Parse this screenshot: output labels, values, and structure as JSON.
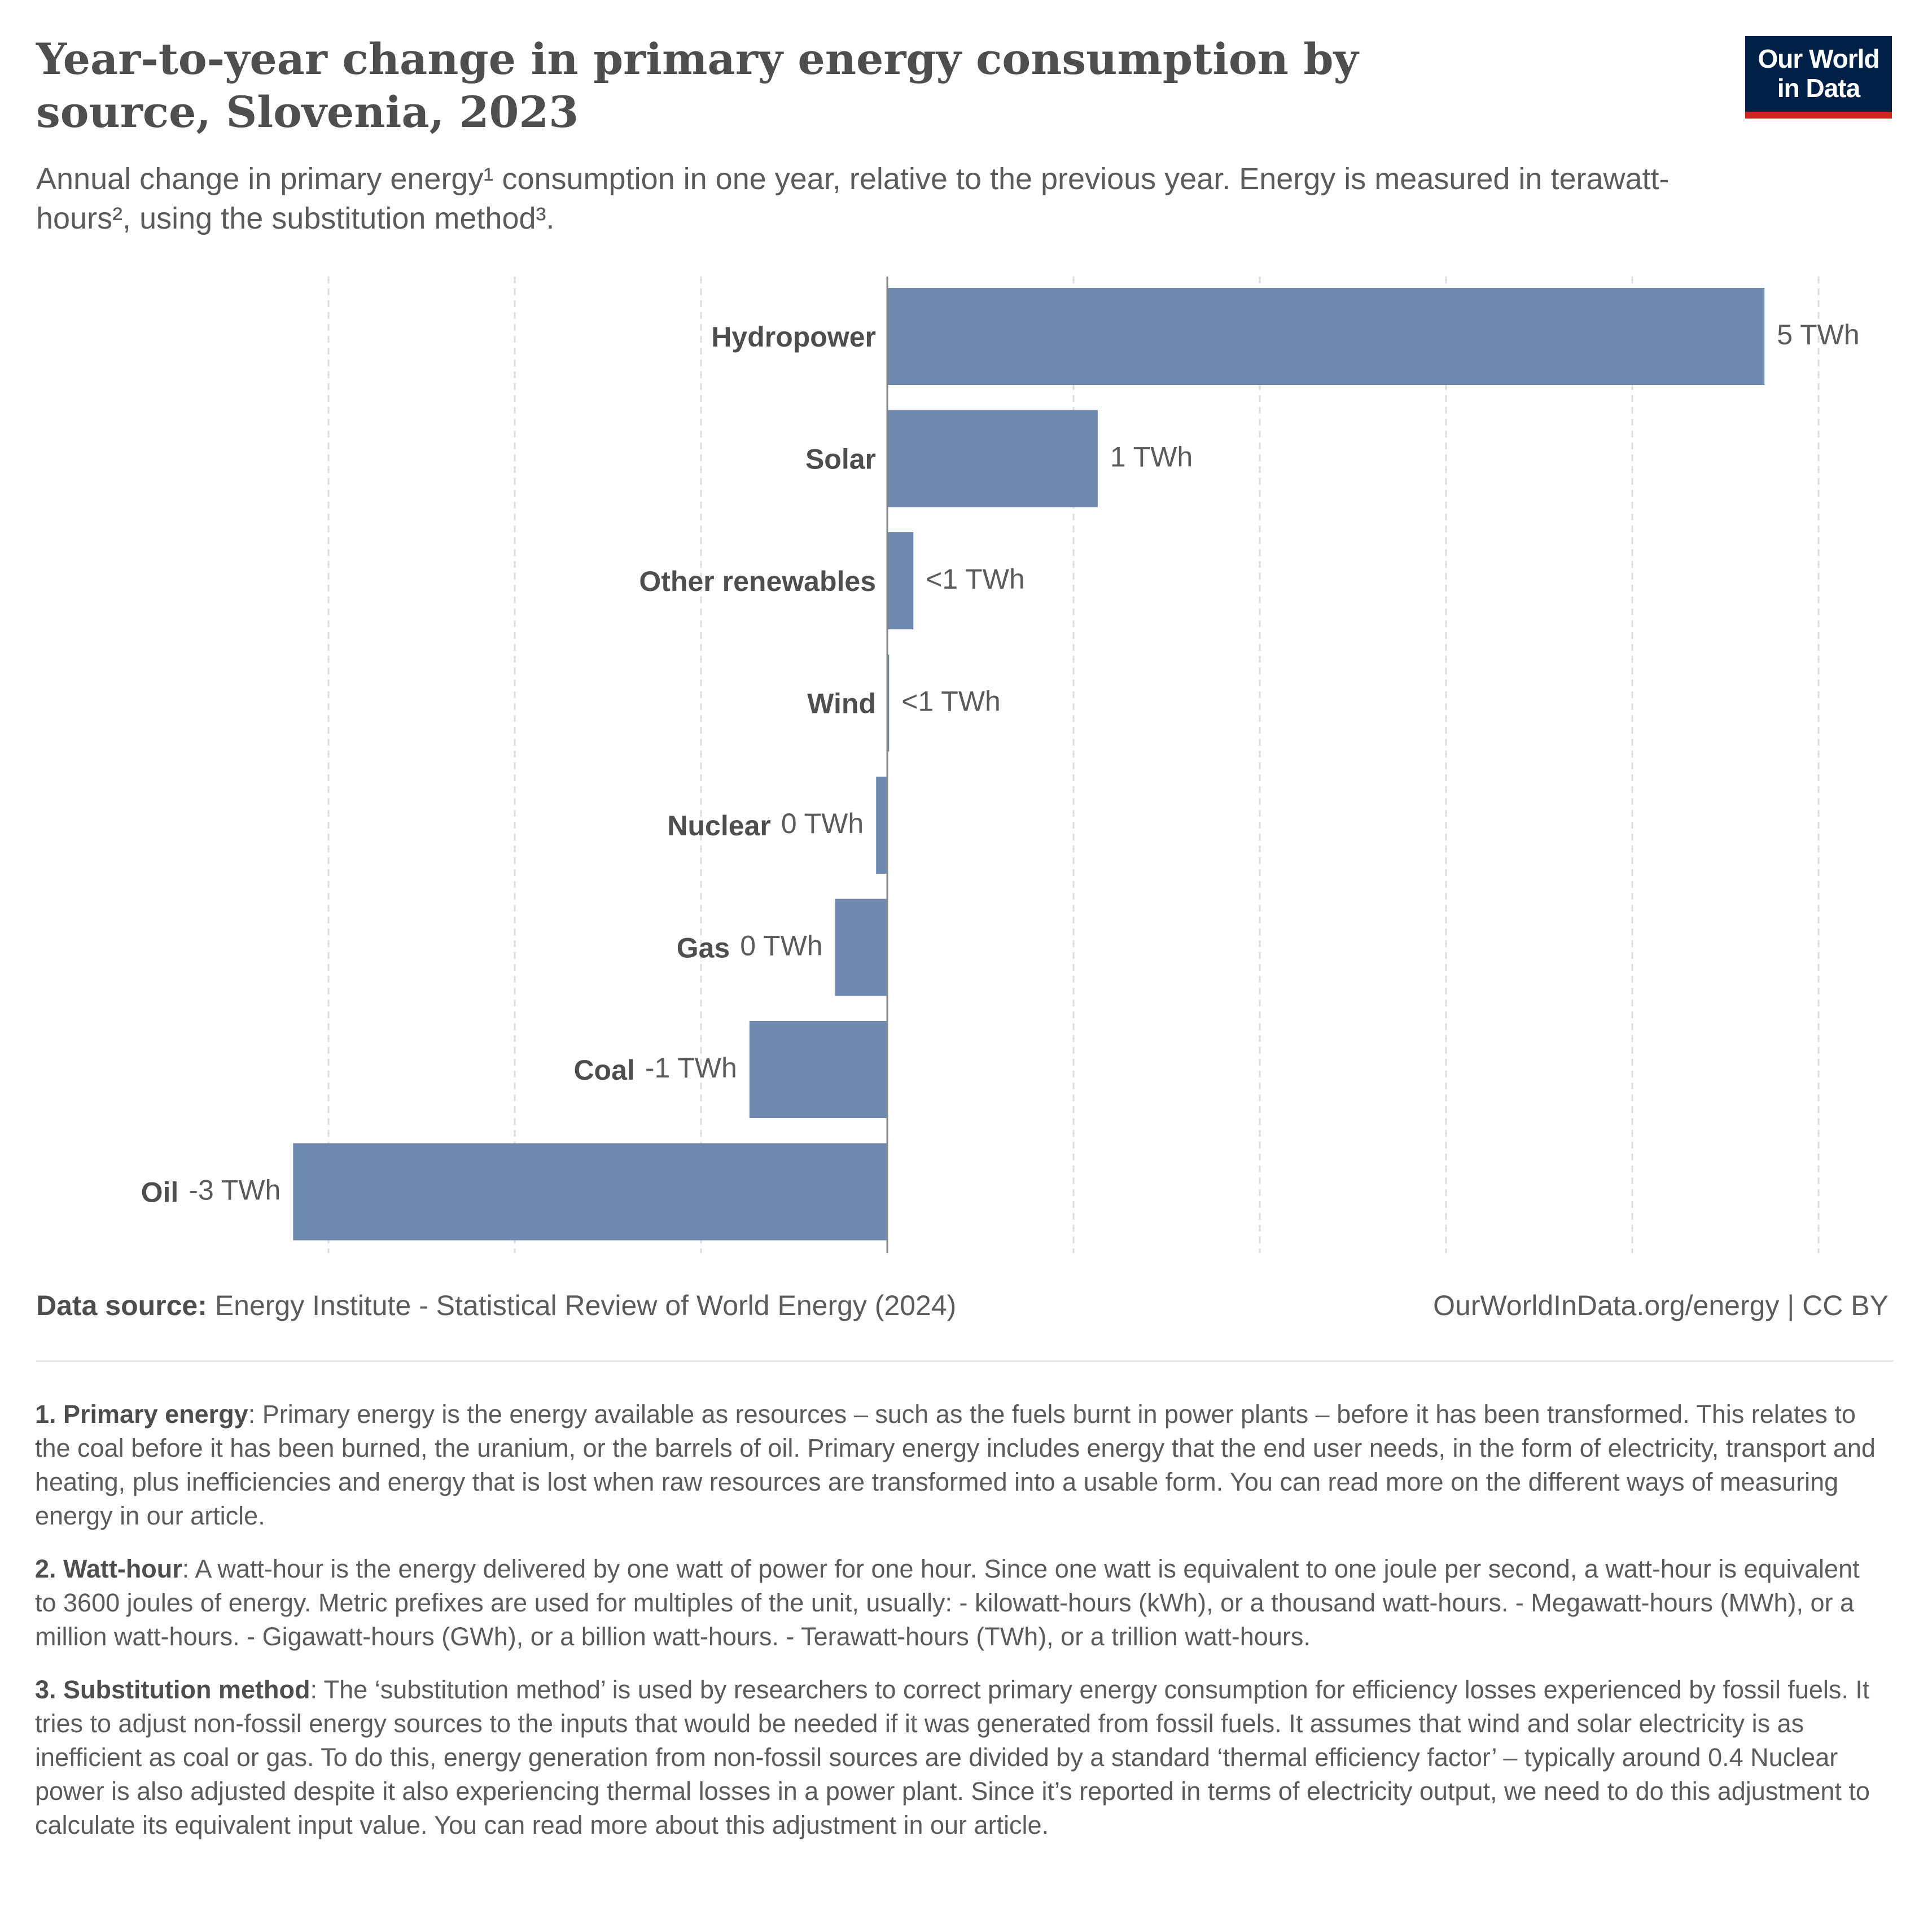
{
  "header": {
    "title": "Year-to-year change in primary energy consumption by source, Slovenia, 2023",
    "subtitle": "Annual change in primary energy¹ consumption in one year, relative to the previous year. Energy is measured in terawatt-hours², using the substitution method³.",
    "logo_line1": "Our World",
    "logo_line2": "in Data"
  },
  "colors": {
    "bar": "#6f88b0",
    "brand_bg": "#002147",
    "brand_accent": "#ce261e"
  },
  "chart_data": {
    "type": "bar",
    "orientation": "horizontal",
    "unit": "TWh",
    "categories": [
      "Hydropower",
      "Solar",
      "Other renewables",
      "Wind",
      "Nuclear",
      "Gas",
      "Coal",
      "Oil"
    ],
    "values": [
      4.71,
      1.13,
      0.14,
      0.01,
      -0.06,
      -0.28,
      -0.74,
      -3.19
    ],
    "value_labels": [
      "5 TWh",
      "1 TWh",
      "<1 TWh",
      "<1 TWh",
      "0 TWh",
      "0 TWh",
      "-1 TWh",
      "-3 TWh"
    ],
    "xlim": [
      -3,
      5
    ],
    "grid_step": 1,
    "grid": "vertical dashed"
  },
  "footer": {
    "source_label": "Data source:",
    "source_text": "Energy Institute - Statistical Review of World Energy (2024)",
    "url": "OurWorldInData.org/energy | CC BY"
  },
  "notes": [
    {
      "label": "1. Primary energy",
      "text": ": Primary energy is the energy available as resources – such as the fuels burnt in power plants – before it has been transformed. This relates to the coal before it has been burned, the uranium, or the barrels of oil. Primary energy includes energy that the end user needs, in the form of electricity, transport and heating, plus inefficiencies and energy that is lost when raw resources are transformed into a usable form. You can read more on the different ways of measuring energy in our article."
    },
    {
      "label": "2. Watt-hour",
      "text": ": A watt-hour is the energy delivered by one watt of power for one hour. Since one watt is equivalent to one joule per second, a watt-hour is equivalent to 3600 joules of energy. Metric prefixes are used for multiples of the unit, usually: - kilowatt-hours (kWh), or a thousand watt-hours. - Megawatt-hours (MWh), or a million watt-hours. - Gigawatt-hours (GWh), or a billion watt-hours. - Terawatt-hours (TWh), or a trillion watt-hours."
    },
    {
      "label": "3. Substitution method",
      "text": ": The ‘substitution method’ is used by researchers to correct primary energy consumption for efficiency losses experienced by fossil fuels. It tries to adjust non-fossil energy sources to the inputs that would be needed if it was generated from fossil fuels. It assumes that wind and solar electricity is as inefficient as coal or gas. To do this, energy generation from non-fossil sources are divided by a standard ‘thermal efficiency factor’ – typically around 0.4 Nuclear power is also adjusted despite it also experiencing thermal losses in a power plant. Since it’s reported in terms of electricity output, we need to do this adjustment to calculate its equivalent input value. You can read more about this adjustment in our article."
    }
  ]
}
